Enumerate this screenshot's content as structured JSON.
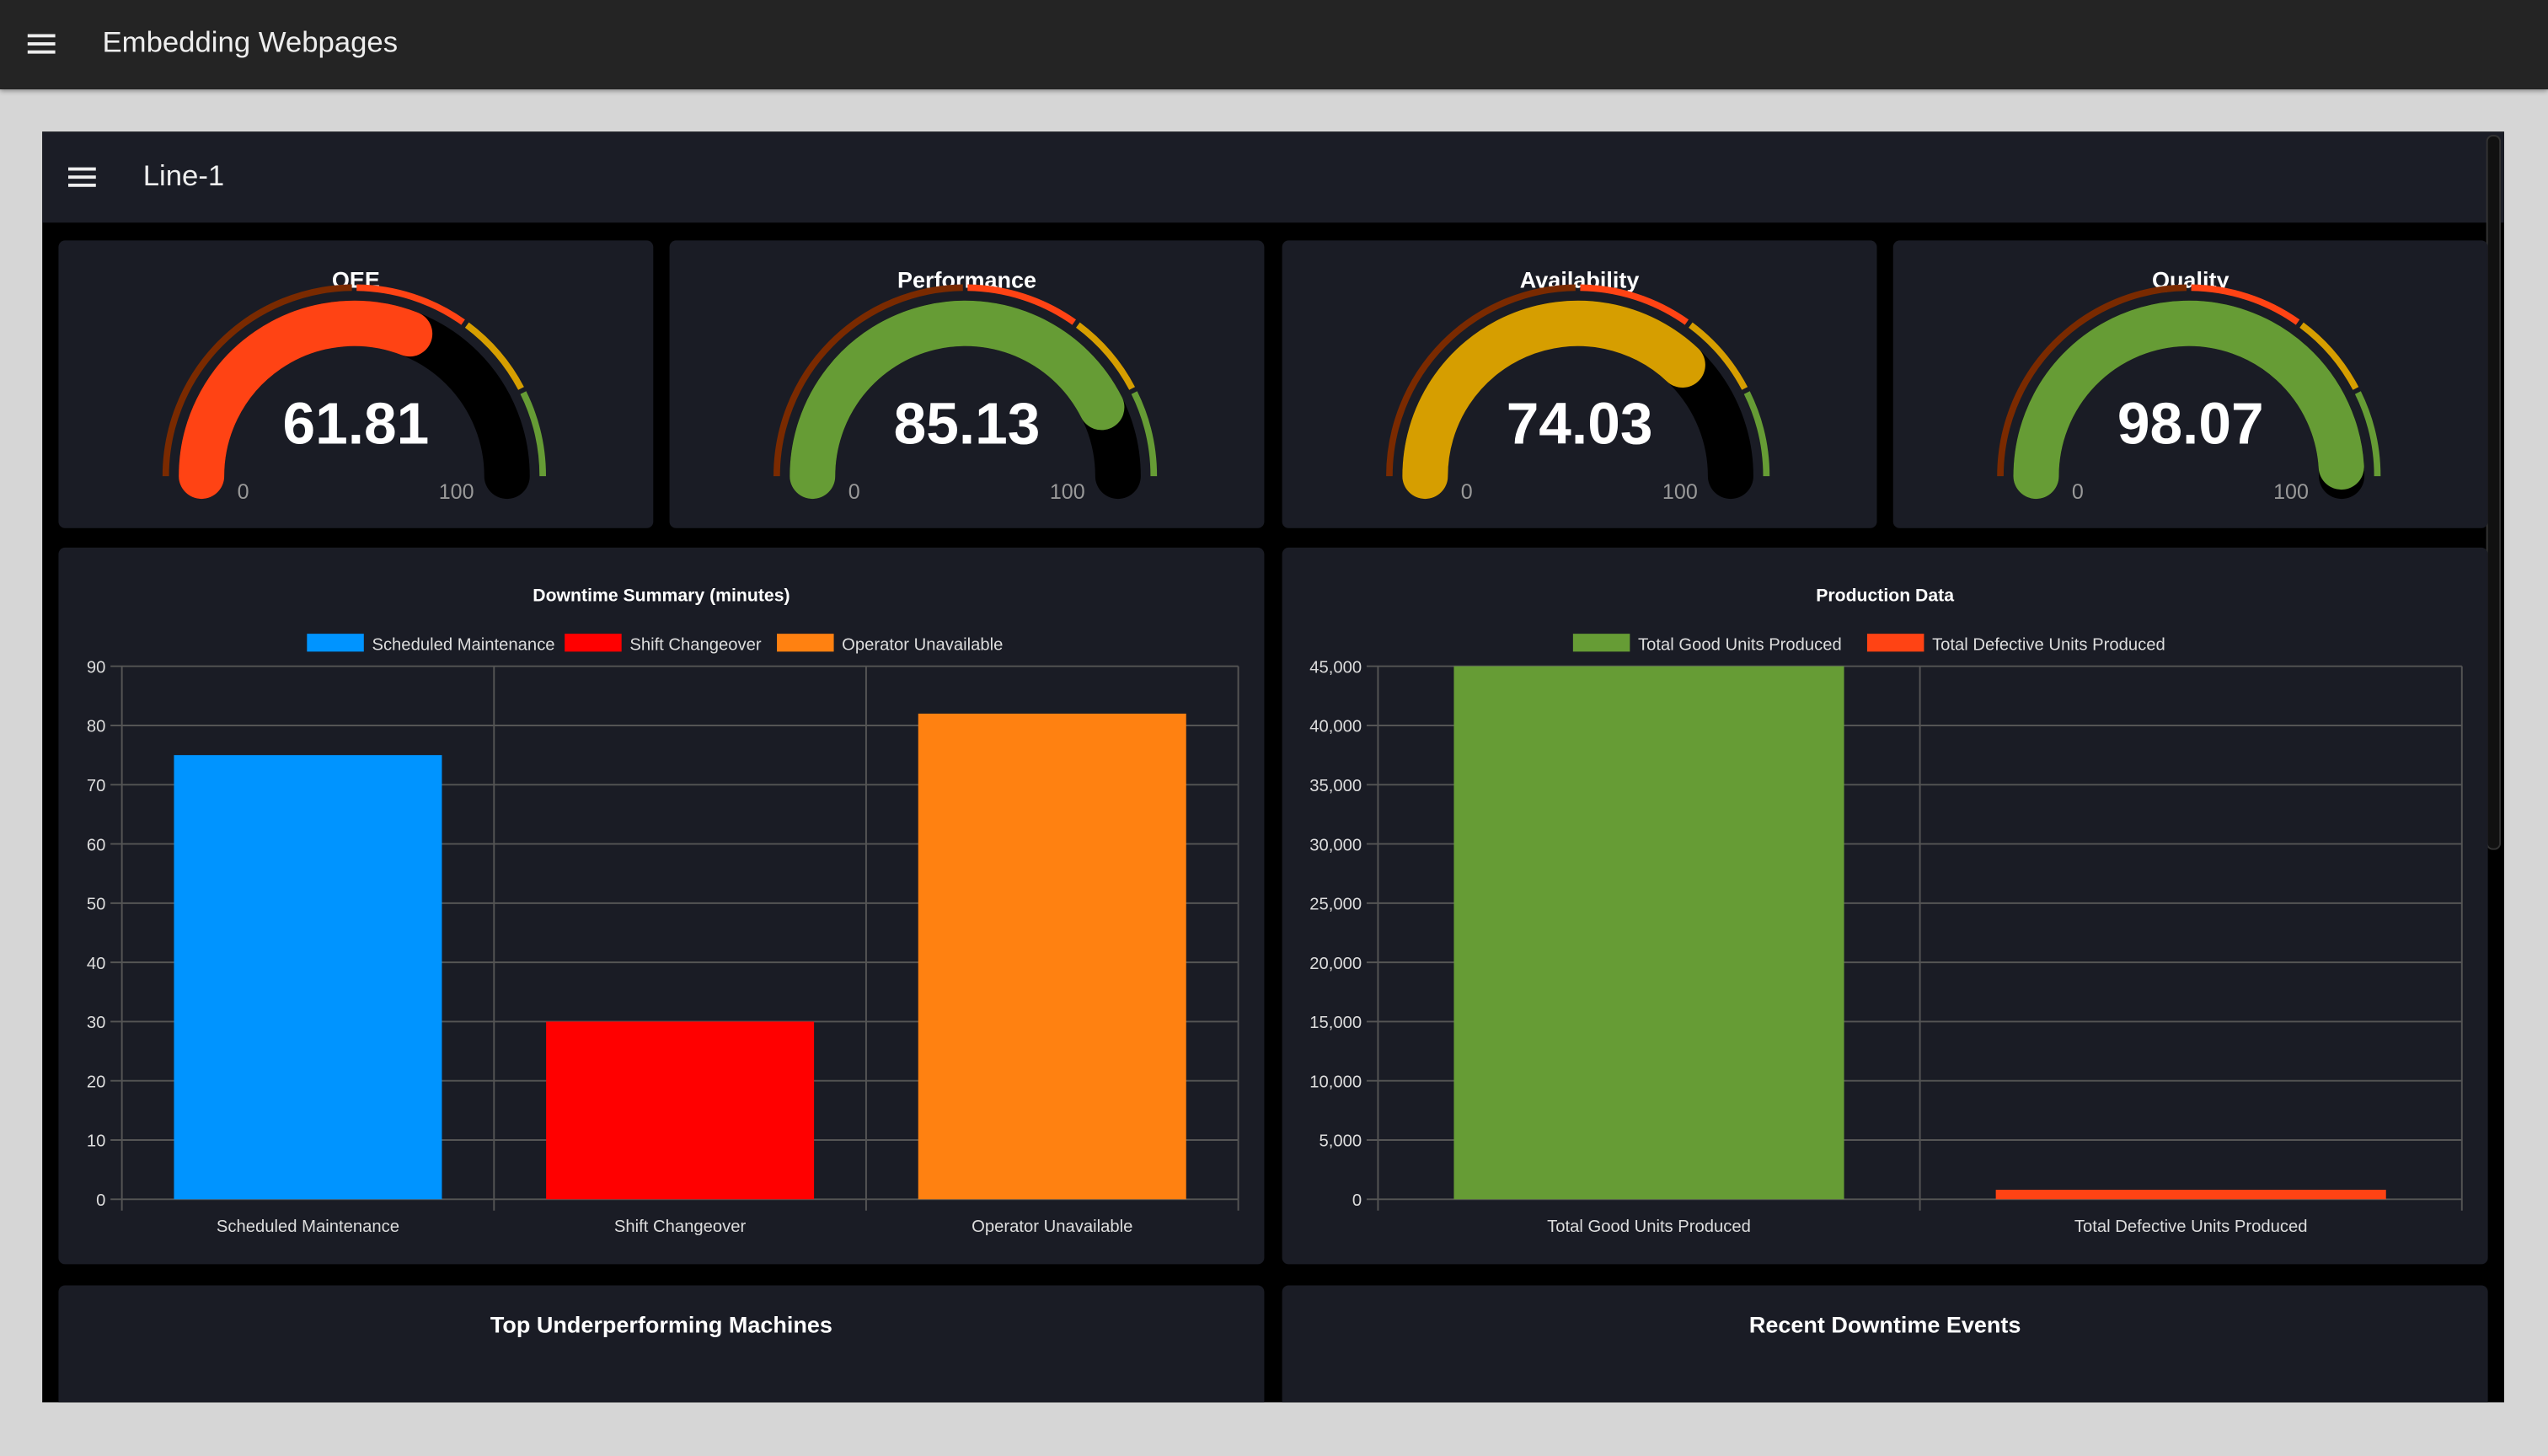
{
  "app": {
    "title": "Embedding Webpages",
    "menu_icon": "hamburger-icon"
  },
  "page": {
    "title": "Line-1",
    "menu_icon": "hamburger-icon"
  },
  "gauge_segments": [
    {
      "from": 0,
      "to": 50,
      "color": "#7a2a00"
    },
    {
      "from": 50,
      "to": 70,
      "color": "#ff4314"
    },
    {
      "from": 70,
      "to": 85,
      "color": "#d69e00"
    },
    {
      "from": 85,
      "to": 100,
      "color": "#669c35"
    }
  ],
  "gauges": [
    {
      "label": "OEE",
      "value": "61.81",
      "min": "0",
      "max": "100",
      "color": "#ff4314"
    },
    {
      "label": "Performance",
      "value": "85.13",
      "min": "0",
      "max": "100",
      "color": "#669c35"
    },
    {
      "label": "Availability",
      "value": "74.03",
      "min": "0",
      "max": "100",
      "color": "#d69e00"
    },
    {
      "label": "Quality",
      "value": "98.07",
      "min": "0",
      "max": "100",
      "color": "#669c35"
    }
  ],
  "chart_data": [
    {
      "type": "bar",
      "title": "Downtime Summary (minutes)",
      "categories": [
        "Scheduled Maintenance",
        "Shift Changeover",
        "Operator Unavailable"
      ],
      "series": [
        {
          "name": "Scheduled Maintenance",
          "value": 75,
          "color": "#0094ff"
        },
        {
          "name": "Shift Changeover",
          "value": 30,
          "color": "#ff0000"
        },
        {
          "name": "Operator Unavailable",
          "value": 82,
          "color": "#ff8111"
        }
      ],
      "ylim": [
        0,
        90
      ],
      "yticks": [
        "0",
        "10",
        "20",
        "30",
        "40",
        "50",
        "60",
        "70",
        "80",
        "90"
      ],
      "grid": true,
      "legend": "top"
    },
    {
      "type": "bar",
      "title": "Production Data",
      "categories": [
        "Total Good Units Produced",
        "Total Defective Units Produced"
      ],
      "series": [
        {
          "name": "Total Good Units Produced",
          "value": 45000,
          "color": "#669c35"
        },
        {
          "name": "Total Defective Units Produced",
          "value": 800,
          "color": "#ff4314"
        }
      ],
      "ylim": [
        0,
        45000
      ],
      "yticks": [
        "0",
        "5,000",
        "10,000",
        "15,000",
        "20,000",
        "25,000",
        "30,000",
        "35,000",
        "40,000",
        "45,000"
      ],
      "grid": true,
      "legend": "top"
    }
  ],
  "bottom": {
    "machines_title": "Top Underperforming Machines",
    "events_title": "Recent Downtime Events"
  }
}
